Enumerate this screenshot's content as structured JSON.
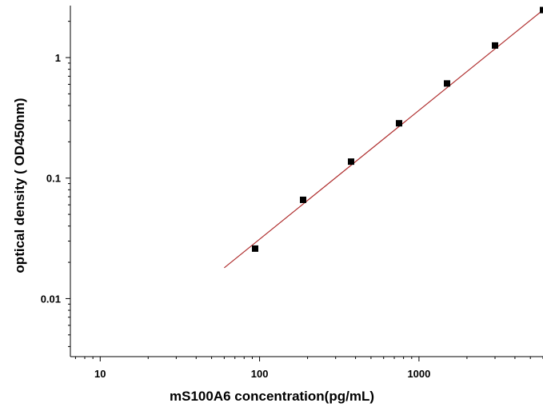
{
  "chart_data": {
    "type": "scatter",
    "title": "",
    "xlabel": "mS100A6 concentration(pg/mL)",
    "ylabel": "optical density ( OD450nm)",
    "x_scale": "log",
    "y_scale": "log",
    "xlim": [
      6.5,
      6000
    ],
    "ylim": [
      0.0033,
      2.7
    ],
    "x_ticks": [
      {
        "value": 10,
        "label": "10"
      },
      {
        "value": 100,
        "label": "100"
      },
      {
        "value": 1000,
        "label": "1000"
      }
    ],
    "y_ticks": [
      {
        "value": 0.01,
        "label": "0.01"
      },
      {
        "value": 0.1,
        "label": "0.1"
      },
      {
        "value": 1,
        "label": "1"
      }
    ],
    "grid": false,
    "legend": "none",
    "series": [
      {
        "points": [
          {
            "x": 93.75,
            "y": 0.026
          },
          {
            "x": 187.5,
            "y": 0.066
          },
          {
            "x": 375,
            "y": 0.137
          },
          {
            "x": 750,
            "y": 0.285
          },
          {
            "x": 1500,
            "y": 0.61
          },
          {
            "x": 3000,
            "y": 1.26
          },
          {
            "x": 6000,
            "y": 2.48
          }
        ],
        "marker_color": "#000000"
      }
    ],
    "fit_line": {
      "type": "linear-on-log-log",
      "x_range": [
        60,
        6000
      ],
      "y_range": [
        0.018,
        2.48
      ],
      "color": "#b03030"
    }
  }
}
